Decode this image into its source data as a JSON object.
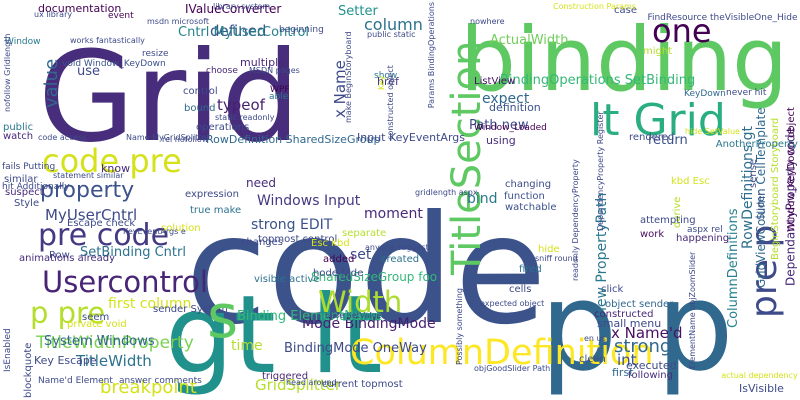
{
  "words": [
    {
      "text": "code",
      "color": "#3b528b"
    },
    {
      "text": "Grid",
      "color": "#472d7b"
    },
    {
      "text": "binding",
      "color": "#5ec962"
    },
    {
      "text": "gt lt",
      "color": "#21918c"
    },
    {
      "text": "p p",
      "color": "#31688e"
    },
    {
      "text": "lt Grid",
      "color": "#28ae80"
    },
    {
      "text": "code pre",
      "color": "#d5e21a"
    },
    {
      "text": "pre code",
      "color": "#443983"
    },
    {
      "text": "Usercontrol",
      "color": "#482576"
    },
    {
      "text": "ColumnDefinition",
      "color": "#fde725"
    },
    {
      "text": "TitleSection",
      "color": "#5ec962"
    },
    {
      "text": "property",
      "color": "#3b528b"
    },
    {
      "text": "one",
      "color": "#440154"
    },
    {
      "text": "p pre",
      "color": "#b5de2b"
    },
    {
      "text": "Width",
      "color": "#addc30"
    },
    {
      "text": "pre p",
      "color": "#3e4a89"
    },
    {
      "text": "TitleWidthProperty",
      "color": "#7ad151"
    },
    {
      "text": "breakpoint",
      "color": "#d5e21a"
    },
    {
      "text": "TitleWidth",
      "color": "#2c728e"
    },
    {
      "text": "System Windows",
      "color": "#31688e"
    },
    {
      "text": "column",
      "color": "#2c728e"
    },
    {
      "text": "x Name",
      "color": "#3e4a89"
    },
    {
      "text": "defined",
      "color": "#3b528b"
    },
    {
      "text": "Cntrl MyUserControl",
      "color": "#26828e"
    },
    {
      "text": "IValueConverter",
      "color": "#440154"
    },
    {
      "text": "BindingOperations SetBinding",
      "color": "#35b779"
    },
    {
      "text": "ActualWidth",
      "color": "#6ece58"
    },
    {
      "text": "RowDefinition SharedSizeGroup",
      "color": "#31688e"
    },
    {
      "text": "RowDefinitions gt",
      "color": "#2d708e"
    },
    {
      "text": "ColumnDefinitions",
      "color": "#26828e"
    },
    {
      "text": "DependancyProperty code",
      "color": "#482878"
    },
    {
      "text": "GridViewColumn CellTemplate",
      "color": "#31688e"
    },
    {
      "text": "BeginStoryboard Storyboard",
      "color": "#b5de2b"
    },
    {
      "text": "Window_KeyDown object",
      "color": "#440154"
    },
    {
      "text": "int",
      "color": "#3b528b"
    },
    {
      "text": "strong",
      "color": "#31688e"
    },
    {
      "text": "x Name'd",
      "color": "#471164"
    },
    {
      "text": "new PropertyPath",
      "color": "#2a788e"
    },
    {
      "text": "Mode BindingMode",
      "color": "#481f70"
    },
    {
      "text": "BindingMode OneWay",
      "color": "#3e4a89"
    },
    {
      "text": "Windows Input",
      "color": "#443983"
    },
    {
      "text": "strong EDIT",
      "color": "#3b528b"
    },
    {
      "text": "MyUserCntrl",
      "color": "#3e4a89"
    },
    {
      "text": "SetBinding Cntrl",
      "color": "#2c728e"
    },
    {
      "text": "value",
      "color": "#31688e"
    },
    {
      "text": "use",
      "color": "#3e4a89"
    },
    {
      "text": "Setter",
      "color": "#21918c"
    },
    {
      "text": "Path new",
      "color": "#3e4a89"
    },
    {
      "text": "expect",
      "color": "#31688e"
    },
    {
      "text": "definition",
      "color": "#3b528b"
    },
    {
      "text": "moment",
      "color": "#482878"
    },
    {
      "text": "bind",
      "color": "#2a788e"
    },
    {
      "text": "set",
      "color": "#3e4a89"
    },
    {
      "text": "GridSplitter",
      "color": "#b5de2b"
    },
    {
      "text": "first column",
      "color": "#d5e21a"
    },
    {
      "text": "Binding ElementName",
      "color": "#35b779"
    },
    {
      "text": "time",
      "color": "#b5de2b"
    },
    {
      "text": "typeof",
      "color": "#481f70"
    },
    {
      "text": "need",
      "color": "#472d7b"
    },
    {
      "text": "know",
      "color": "#472d7b"
    },
    {
      "text": "return",
      "color": "#3b528b"
    },
    {
      "text": "using",
      "color": "#472d7b"
    },
    {
      "text": "multiple",
      "color": "#482878"
    },
    {
      "text": "documentation",
      "color": "#440154"
    },
    {
      "text": "SharedSizeGroup foo",
      "color": "#35b779"
    },
    {
      "text": "Input KeyEventArgs",
      "color": "#3e4a89"
    },
    {
      "text": "ListView",
      "color": "#471164"
    },
    {
      "text": "href",
      "color": "#443983"
    },
    {
      "text": "show",
      "color": "#2a788e"
    },
    {
      "text": "Window",
      "color": "#2a788e"
    },
    {
      "text": "void Window_KeyDown",
      "color": "#3b528b"
    },
    {
      "text": "Window_Loaded",
      "color": "#440154"
    },
    {
      "text": "Key Escape",
      "color": "#3e4a89"
    },
    {
      "text": "Row",
      "color": "#3e4a89"
    },
    {
      "text": "sense",
      "color": "#3e4a89"
    },
    {
      "text": "Slider",
      "color": "#3b528b"
    },
    {
      "text": "AnotherProperty",
      "color": "#2a788e"
    },
    {
      "text": "IsVisible",
      "color": "#3e4a89"
    },
    {
      "text": "executed",
      "color": "#3e4a89"
    },
    {
      "text": "following",
      "color": "#472d7b"
    },
    {
      "text": "first",
      "color": "#31688e"
    },
    {
      "text": "small menu",
      "color": "#3e4a89"
    },
    {
      "text": "constructed",
      "color": "#482878"
    },
    {
      "text": "object sender",
      "color": "#31688e"
    },
    {
      "text": "work",
      "color": "#471164"
    },
    {
      "text": "happening",
      "color": "#482878"
    },
    {
      "text": "derive",
      "color": "#b5de2b"
    },
    {
      "text": "attempting",
      "color": "#3e4a89"
    },
    {
      "text": "click",
      "color": "#3e4a89"
    },
    {
      "text": "fired",
      "color": "#2c728e"
    },
    {
      "text": "cells",
      "color": "#3e4a89"
    },
    {
      "text": "clean",
      "color": "#3b528b"
    },
    {
      "text": "hide",
      "color": "#d5e21a"
    },
    {
      "text": "changing",
      "color": "#3e4a89"
    },
    {
      "text": "function",
      "color": "#3b528b"
    },
    {
      "text": "watchable",
      "color": "#3b528b"
    },
    {
      "text": "created",
      "color": "#2c728e"
    },
    {
      "text": "added",
      "color": "#440154"
    },
    {
      "text": "changes",
      "color": "#3e4a89"
    },
    {
      "text": "solution",
      "color": "#d5e21a"
    },
    {
      "text": "expression",
      "color": "#3e4a89"
    },
    {
      "text": "control",
      "color": "#3e4a89"
    },
    {
      "text": "bound",
      "color": "#31688e"
    },
    {
      "text": "operations",
      "color": "#3e4a89"
    },
    {
      "text": "choose",
      "color": "#482878"
    },
    {
      "text": "WPF",
      "color": "#440154"
    },
    {
      "text": "able",
      "color": "#2c728e"
    },
    {
      "text": "resize",
      "color": "#3e4a89"
    },
    {
      "text": "event",
      "color": "#440154"
    },
    {
      "text": "beginning",
      "color": "#3e4a89"
    },
    {
      "text": "public",
      "color": "#2a788e"
    },
    {
      "text": "watch",
      "color": "#482878"
    },
    {
      "text": "similar",
      "color": "#3e4a89"
    },
    {
      "text": "suspect",
      "color": "#482878"
    },
    {
      "text": "Style",
      "color": "#3e4a89"
    },
    {
      "text": "Escape check",
      "color": "#3e4a89"
    },
    {
      "text": "animations already",
      "color": "#472d7b"
    },
    {
      "text": "seem",
      "color": "#3e4a89"
    },
    {
      "text": "private void",
      "color": "#d5e21a"
    },
    {
      "text": "triggered",
      "color": "#482878"
    },
    {
      "text": "visible active",
      "color": "#2c728e"
    },
    {
      "text": "topmost control",
      "color": "#3e4a89"
    },
    {
      "text": "separate",
      "color": "#b5de2b"
    },
    {
      "text": "true make",
      "color": "#2c728e"
    },
    {
      "text": "hode fade",
      "color": "#3e4a89"
    },
    {
      "text": "current topmost",
      "color": "#3e4a89"
    },
    {
      "text": "sender System",
      "color": "#3e4a89"
    },
    {
      "text": "rendered",
      "color": "#3e4a89"
    },
    {
      "text": "case",
      "color": "#3e4a89"
    },
    {
      "text": "might",
      "color": "#b5de2b"
    },
    {
      "text": "FindResource theVisibleOne_Hide",
      "color": "#3e4a89"
    },
    {
      "text": "KeyDown",
      "color": "#31688e"
    },
    {
      "text": "never hit",
      "color": "#3e4a89"
    },
    {
      "text": "aspx rel",
      "color": "#3e4a89"
    },
    {
      "text": "kbd Esc",
      "color": "#d5e21a"
    },
    {
      "text": "Esc kbd",
      "color": "#d5e21a"
    },
    {
      "text": "fails Putting",
      "color": "#3e4a89"
    },
    {
      "text": "hit Additionally",
      "color": "#3e4a89"
    },
    {
      "text": "blockquote",
      "color": "#3e4a89"
    },
    {
      "text": "IsEnabled",
      "color": "#3e4a89"
    },
    {
      "text": "Name'd Element",
      "color": "#3e4a89"
    },
    {
      "text": "answer comments",
      "color": "#3e4a89"
    },
    {
      "text": "works fantastically",
      "color": "#3e4a89"
    },
    {
      "text": "msdn microsoft",
      "color": "#3e4a89"
    },
    {
      "text": "library system",
      "color": "#3e4a89"
    },
    {
      "text": "public static",
      "color": "#3e4a89"
    },
    {
      "text": "static readonly",
      "color": "#3e4a89"
    },
    {
      "text": "statement similar",
      "color": "#3e4a89"
    },
    {
      "text": "rel nofollow",
      "color": "#3e4a89"
    },
    {
      "text": "make BeginStoryboard",
      "color": "#3e4a89"
    },
    {
      "text": "constructed object",
      "color": "#3e4a89"
    },
    {
      "text": "Construction Params",
      "color": "#d5e21a"
    },
    {
      "text": "ux library",
      "color": "#3e4a89"
    },
    {
      "text": "MSDN pages",
      "color": "#3e4a89"
    },
    {
      "text": "Name MyGridSplitter",
      "color": "#3e4a89"
    },
    {
      "text": "anyone suggest",
      "color": "#3e4a89"
    },
    {
      "text": "sniff round",
      "color": "#3e4a89"
    },
    {
      "text": "expected object",
      "color": "#3e4a89"
    },
    {
      "text": "Possibly something",
      "color": "#3e4a89"
    },
    {
      "text": "head around",
      "color": "#3e4a89"
    },
    {
      "text": "objGoodSlider Path",
      "color": "#3e4a89"
    },
    {
      "text": "ElementName objZoomSlider",
      "color": "#3e4a89"
    },
    {
      "text": "actual dependency",
      "color": "#d5e21a"
    },
    {
      "text": "readonly DependencyProperty",
      "color": "#3e4a89"
    },
    {
      "text": "DependencyProperty Register",
      "color": "#3e4a89"
    },
    {
      "text": "gridlength aspx",
      "color": "#3e4a89"
    },
    {
      "text": "base SetValue",
      "color": "#3e4a89"
    },
    {
      "text": "hide SetValue",
      "color": "#d5e21a"
    },
    {
      "text": "en us",
      "color": "#3e4a89"
    },
    {
      "text": "KeyEventArgs e",
      "color": "#3e4a89"
    },
    {
      "text": "Params BindingOperations",
      "color": "#3e4a89"
    },
    {
      "text": "nofollow Gridlength",
      "color": "#3e4a89"
    },
    {
      "text": "nowhere",
      "color": "#3e4a89"
    },
    {
      "text": "Key",
      "color": "#d5e21a"
    },
    {
      "text": "code access",
      "color": "#3e4a89"
    },
    {
      "text": "s",
      "color": "#5ec962"
    }
  ]
}
